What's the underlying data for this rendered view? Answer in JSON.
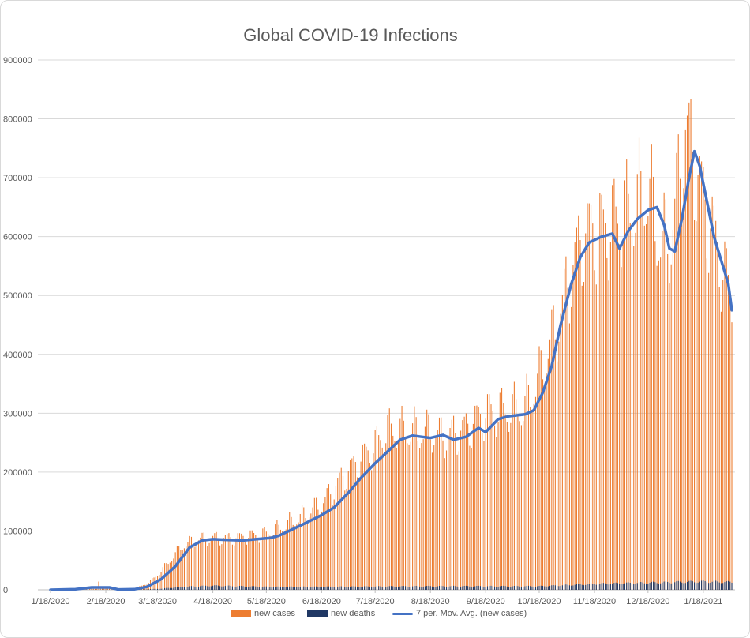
{
  "chart_data": {
    "type": "bar",
    "title": "Global COVID-19 Infections",
    "ylim": [
      0,
      900000
    ],
    "y_ticks": [
      "0",
      "100000",
      "200000",
      "300000",
      "400000",
      "500000",
      "600000",
      "700000",
      "800000",
      "900000"
    ],
    "x_tick_labels": [
      "1/18/2020",
      "2/18/2020",
      "3/18/2020",
      "4/18/2020",
      "5/18/2020",
      "6/18/2020",
      "7/18/2020",
      "8/18/2020",
      "9/18/2020",
      "10/18/2020",
      "11/18/2020",
      "12/18/2020",
      "1/18/2021"
    ],
    "date_start": "2020-01-18",
    "date_end": "2021-02-03",
    "grid": true,
    "legend_position": "bottom",
    "series": [
      {
        "name": "new cases",
        "kind": "bar",
        "color": "#ED7D31",
        "anchors": [
          [
            "2020-01-18",
            0
          ],
          [
            "2020-02-13",
            2000
          ],
          [
            "2020-02-14",
            14000
          ],
          [
            "2020-02-15",
            4000
          ],
          [
            "2020-02-24",
            1000
          ],
          [
            "2020-03-05",
            2500
          ],
          [
            "2020-03-12",
            10000
          ],
          [
            "2020-03-18",
            25000
          ],
          [
            "2020-03-25",
            50000
          ],
          [
            "2020-04-01",
            75000
          ],
          [
            "2020-04-10",
            86000
          ],
          [
            "2020-04-18",
            88000
          ],
          [
            "2020-05-01",
            88000
          ],
          [
            "2020-05-18",
            95000
          ],
          [
            "2020-06-01",
            115000
          ],
          [
            "2020-06-18",
            145000
          ],
          [
            "2020-07-01",
            195000
          ],
          [
            "2020-07-18",
            245000
          ],
          [
            "2020-07-25",
            270000
          ],
          [
            "2020-08-05",
            270000
          ],
          [
            "2020-08-18",
            268000
          ],
          [
            "2020-08-25",
            260000
          ],
          [
            "2020-09-05",
            270000
          ],
          [
            "2020-09-18",
            300000
          ],
          [
            "2020-10-01",
            305000
          ],
          [
            "2020-10-10",
            310000
          ],
          [
            "2020-10-18",
            360000
          ],
          [
            "2020-10-28",
            450000
          ],
          [
            "2020-11-05",
            540000
          ],
          [
            "2020-11-12",
            605000
          ],
          [
            "2020-11-25",
            615000
          ],
          [
            "2020-12-05",
            635000
          ],
          [
            "2020-12-18",
            680000
          ],
          [
            "2020-12-25",
            590000
          ],
          [
            "2020-12-31",
            600000
          ],
          [
            "2021-01-08",
            780000
          ],
          [
            "2021-01-13",
            730000
          ],
          [
            "2021-01-18",
            660000
          ],
          [
            "2021-01-25",
            590000
          ],
          [
            "2021-02-03",
            490000
          ]
        ]
      },
      {
        "name": "new deaths",
        "kind": "bar",
        "color": "#203864",
        "anchors": [
          [
            "2020-01-18",
            0
          ],
          [
            "2020-03-10",
            500
          ],
          [
            "2020-03-20",
            2000
          ],
          [
            "2020-04-01",
            5000
          ],
          [
            "2020-04-18",
            7000
          ],
          [
            "2020-05-18",
            5000
          ],
          [
            "2020-06-18",
            5000
          ],
          [
            "2020-07-18",
            5500
          ],
          [
            "2020-08-18",
            6000
          ],
          [
            "2020-09-18",
            6000
          ],
          [
            "2020-10-18",
            6000
          ],
          [
            "2020-11-18",
            10000
          ],
          [
            "2020-12-18",
            12000
          ],
          [
            "2021-01-18",
            14000
          ],
          [
            "2021-02-03",
            13000
          ]
        ]
      },
      {
        "name": "7 per. Mov. Avg. (new cases)",
        "kind": "line",
        "color": "#4472C4",
        "points": [
          [
            "2020-01-18",
            0
          ],
          [
            "2020-02-01",
            1000
          ],
          [
            "2020-02-10",
            4000
          ],
          [
            "2020-02-20",
            4000
          ],
          [
            "2020-02-25",
            500
          ],
          [
            "2020-03-05",
            1000
          ],
          [
            "2020-03-12",
            5000
          ],
          [
            "2020-03-20",
            18000
          ],
          [
            "2020-03-28",
            40000
          ],
          [
            "2020-04-05",
            72000
          ],
          [
            "2020-04-12",
            84000
          ],
          [
            "2020-04-18",
            86000
          ],
          [
            "2020-04-25",
            85000
          ],
          [
            "2020-05-05",
            84000
          ],
          [
            "2020-05-12",
            86000
          ],
          [
            "2020-05-20",
            88000
          ],
          [
            "2020-05-25",
            92000
          ],
          [
            "2020-06-01",
            102000
          ],
          [
            "2020-06-10",
            115000
          ],
          [
            "2020-06-18",
            127000
          ],
          [
            "2020-06-25",
            140000
          ],
          [
            "2020-07-03",
            165000
          ],
          [
            "2020-07-10",
            190000
          ],
          [
            "2020-07-18",
            215000
          ],
          [
            "2020-07-25",
            235000
          ],
          [
            "2020-08-01",
            255000
          ],
          [
            "2020-08-08",
            262000
          ],
          [
            "2020-08-13",
            260000
          ],
          [
            "2020-08-18",
            258000
          ],
          [
            "2020-08-25",
            263000
          ],
          [
            "2020-08-31",
            255000
          ],
          [
            "2020-09-07",
            260000
          ],
          [
            "2020-09-14",
            275000
          ],
          [
            "2020-09-18",
            268000
          ],
          [
            "2020-09-25",
            290000
          ],
          [
            "2020-10-01",
            295000
          ],
          [
            "2020-10-10",
            298000
          ],
          [
            "2020-10-15",
            305000
          ],
          [
            "2020-10-20",
            335000
          ],
          [
            "2020-10-25",
            380000
          ],
          [
            "2020-10-30",
            450000
          ],
          [
            "2020-11-05",
            520000
          ],
          [
            "2020-11-10",
            565000
          ],
          [
            "2020-11-15",
            590000
          ],
          [
            "2020-11-22",
            600000
          ],
          [
            "2020-11-28",
            605000
          ],
          [
            "2020-12-02",
            580000
          ],
          [
            "2020-12-07",
            610000
          ],
          [
            "2020-12-12",
            630000
          ],
          [
            "2020-12-18",
            645000
          ],
          [
            "2020-12-23",
            650000
          ],
          [
            "2020-12-27",
            620000
          ],
          [
            "2020-12-30",
            580000
          ],
          [
            "2021-01-02",
            575000
          ],
          [
            "2021-01-06",
            630000
          ],
          [
            "2021-01-10",
            700000
          ],
          [
            "2021-01-13",
            745000
          ],
          [
            "2021-01-16",
            720000
          ],
          [
            "2021-01-20",
            660000
          ],
          [
            "2021-01-24",
            600000
          ],
          [
            "2021-01-28",
            560000
          ],
          [
            "2021-02-01",
            520000
          ],
          [
            "2021-02-03",
            475000
          ]
        ]
      }
    ]
  }
}
